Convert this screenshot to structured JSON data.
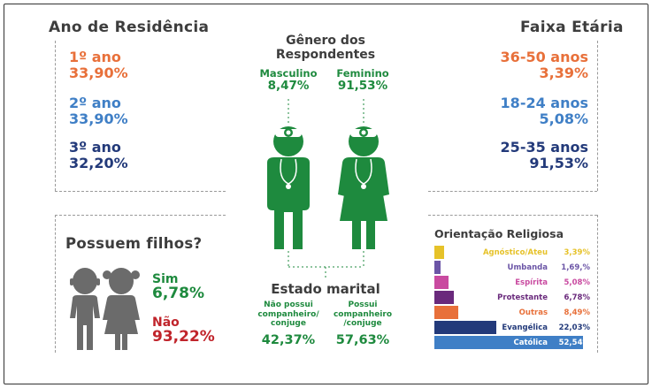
{
  "residence": {
    "title": "Ano de Residência",
    "items": [
      {
        "label": "1º ano",
        "value": "33,90%",
        "color": "#e8703a"
      },
      {
        "label": "2º ano",
        "value": "33,90%",
        "color": "#3f7fc6"
      },
      {
        "label": "3º ano",
        "value": "32,20%",
        "color": "#233a7a"
      }
    ]
  },
  "gender": {
    "title_line1": "Gênero dos",
    "title_line2": "Respondentes",
    "male_label": "Masculino",
    "male_value": "8,47%",
    "female_label": "Feminino",
    "female_value": "91,53%",
    "color": "#1e8a3e"
  },
  "age": {
    "title": "Faixa Etária",
    "items": [
      {
        "label": "36-50 anos",
        "value": "3,39%",
        "color": "#e8703a"
      },
      {
        "label": "18-24 anos",
        "value": "5,08%",
        "color": "#3f7fc6"
      },
      {
        "label": "25-35 anos",
        "value": "91,53%",
        "color": "#233a7a"
      }
    ]
  },
  "children": {
    "title": "Possuem filhos?",
    "yes_label": "Sim",
    "yes_value": "6,78%",
    "no_label": "Não",
    "no_value": "93,22%",
    "yes_color": "#1e8a3e",
    "no_color": "#c0242b"
  },
  "marital": {
    "title": "Estado marital",
    "no_partner_line1": "Não possui",
    "no_partner_line2": "companheiro/",
    "no_partner_line3": "conjuge",
    "no_partner_value": "42,37%",
    "partner_line1": "Possui",
    "partner_line2": "companheiro",
    "partner_line3": "/conjuge",
    "partner_value": "57,63%"
  },
  "religion": {
    "title": "Orientação Religiosa",
    "items": [
      {
        "label": "Agnóstico/Ateu",
        "value": "3,39%",
        "color": "#e6c229",
        "fraction": 0.0339
      },
      {
        "label": "Umbanda",
        "value": "1,69,%",
        "color": "#6b55a6",
        "fraction": 0.0169
      },
      {
        "label": "Espírita",
        "value": "5,08%",
        "color": "#c94aa0",
        "fraction": 0.0508
      },
      {
        "label": "Protestante",
        "value": "6,78%",
        "color": "#6a2a7c",
        "fraction": 0.0678
      },
      {
        "label": "Outras",
        "value": "8,49%",
        "color": "#e8703a",
        "fraction": 0.0849
      },
      {
        "label": "Evangélica",
        "value": "22,03%",
        "color": "#233a7a",
        "fraction": 0.2203
      },
      {
        "label": "Católica",
        "value": "52,54%",
        "color": "#3f7fc6",
        "fraction": 0.5254
      }
    ]
  }
}
